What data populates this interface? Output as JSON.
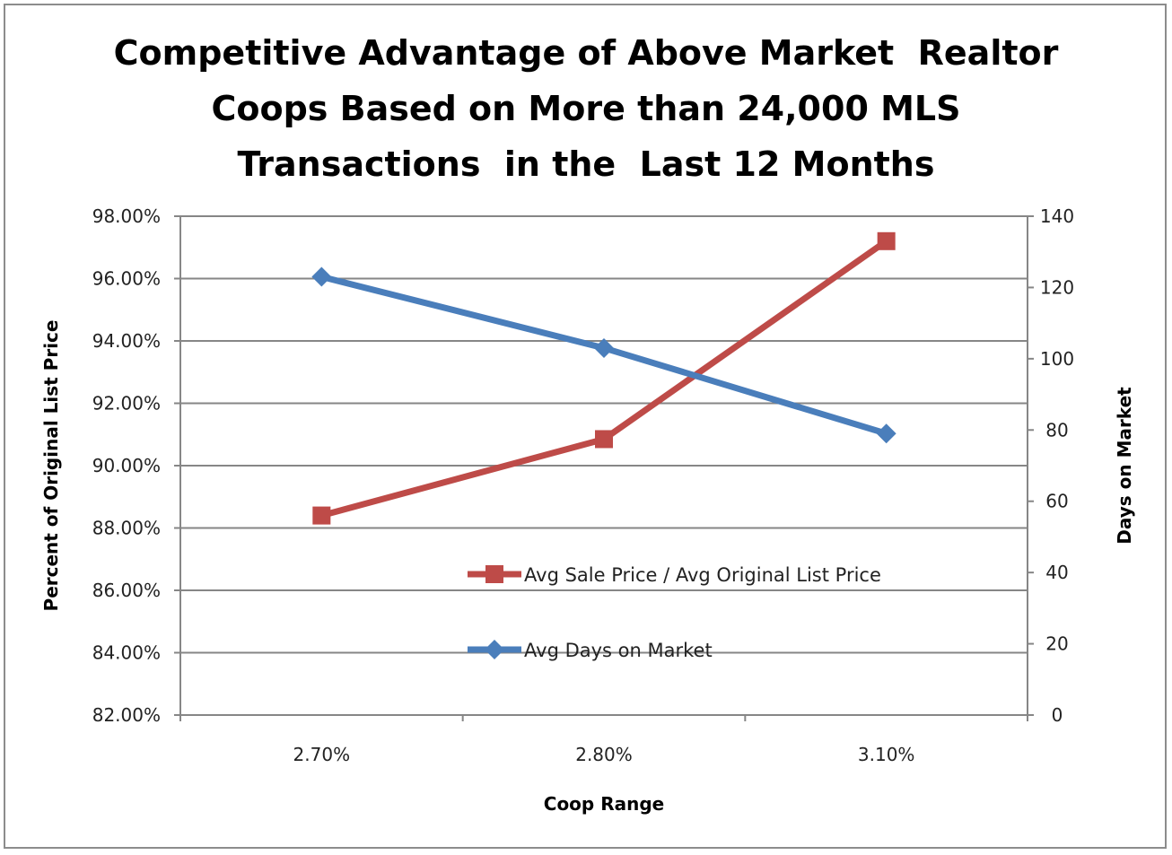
{
  "chart_data": {
    "type": "line",
    "title_lines": [
      "Competitive Advantage of Above Market  Realtor",
      "Coops Based on More than 24,000 MLS",
      "Transactions  in the  Last 12 Months"
    ],
    "categories": [
      "2.70%",
      "2.80%",
      "3.10%"
    ],
    "xlabel": "Coop Range",
    "ylabel": "Percent of Original List Price",
    "y2label": "Days on Market",
    "ylim": [
      82,
      98
    ],
    "yticks": [
      82,
      84,
      86,
      88,
      90,
      92,
      94,
      96,
      98
    ],
    "ytick_labels": [
      "82.00%",
      "84.00%",
      "86.00%",
      "88.00%",
      "90.00%",
      "92.00%",
      "94.00%",
      "96.00%",
      "98.00%"
    ],
    "y2lim": [
      0,
      140
    ],
    "y2ticks": [
      0,
      20,
      40,
      60,
      80,
      100,
      120,
      140
    ],
    "y2tick_labels": [
      "0",
      "20",
      "40",
      "60",
      "80",
      "100",
      "120",
      "140"
    ],
    "grid": true,
    "legend_position": "inside-bottom-center",
    "series": [
      {
        "name": "Avg Sale Price / Avg Original List Price",
        "axis": "left",
        "marker": "square",
        "color": "#be4b48",
        "values": [
          88.4,
          90.85,
          97.2
        ]
      },
      {
        "name": "Avg Days on Market",
        "axis": "right",
        "marker": "diamond",
        "color": "#4a7ebb",
        "values": [
          123,
          103,
          79
        ]
      }
    ]
  }
}
